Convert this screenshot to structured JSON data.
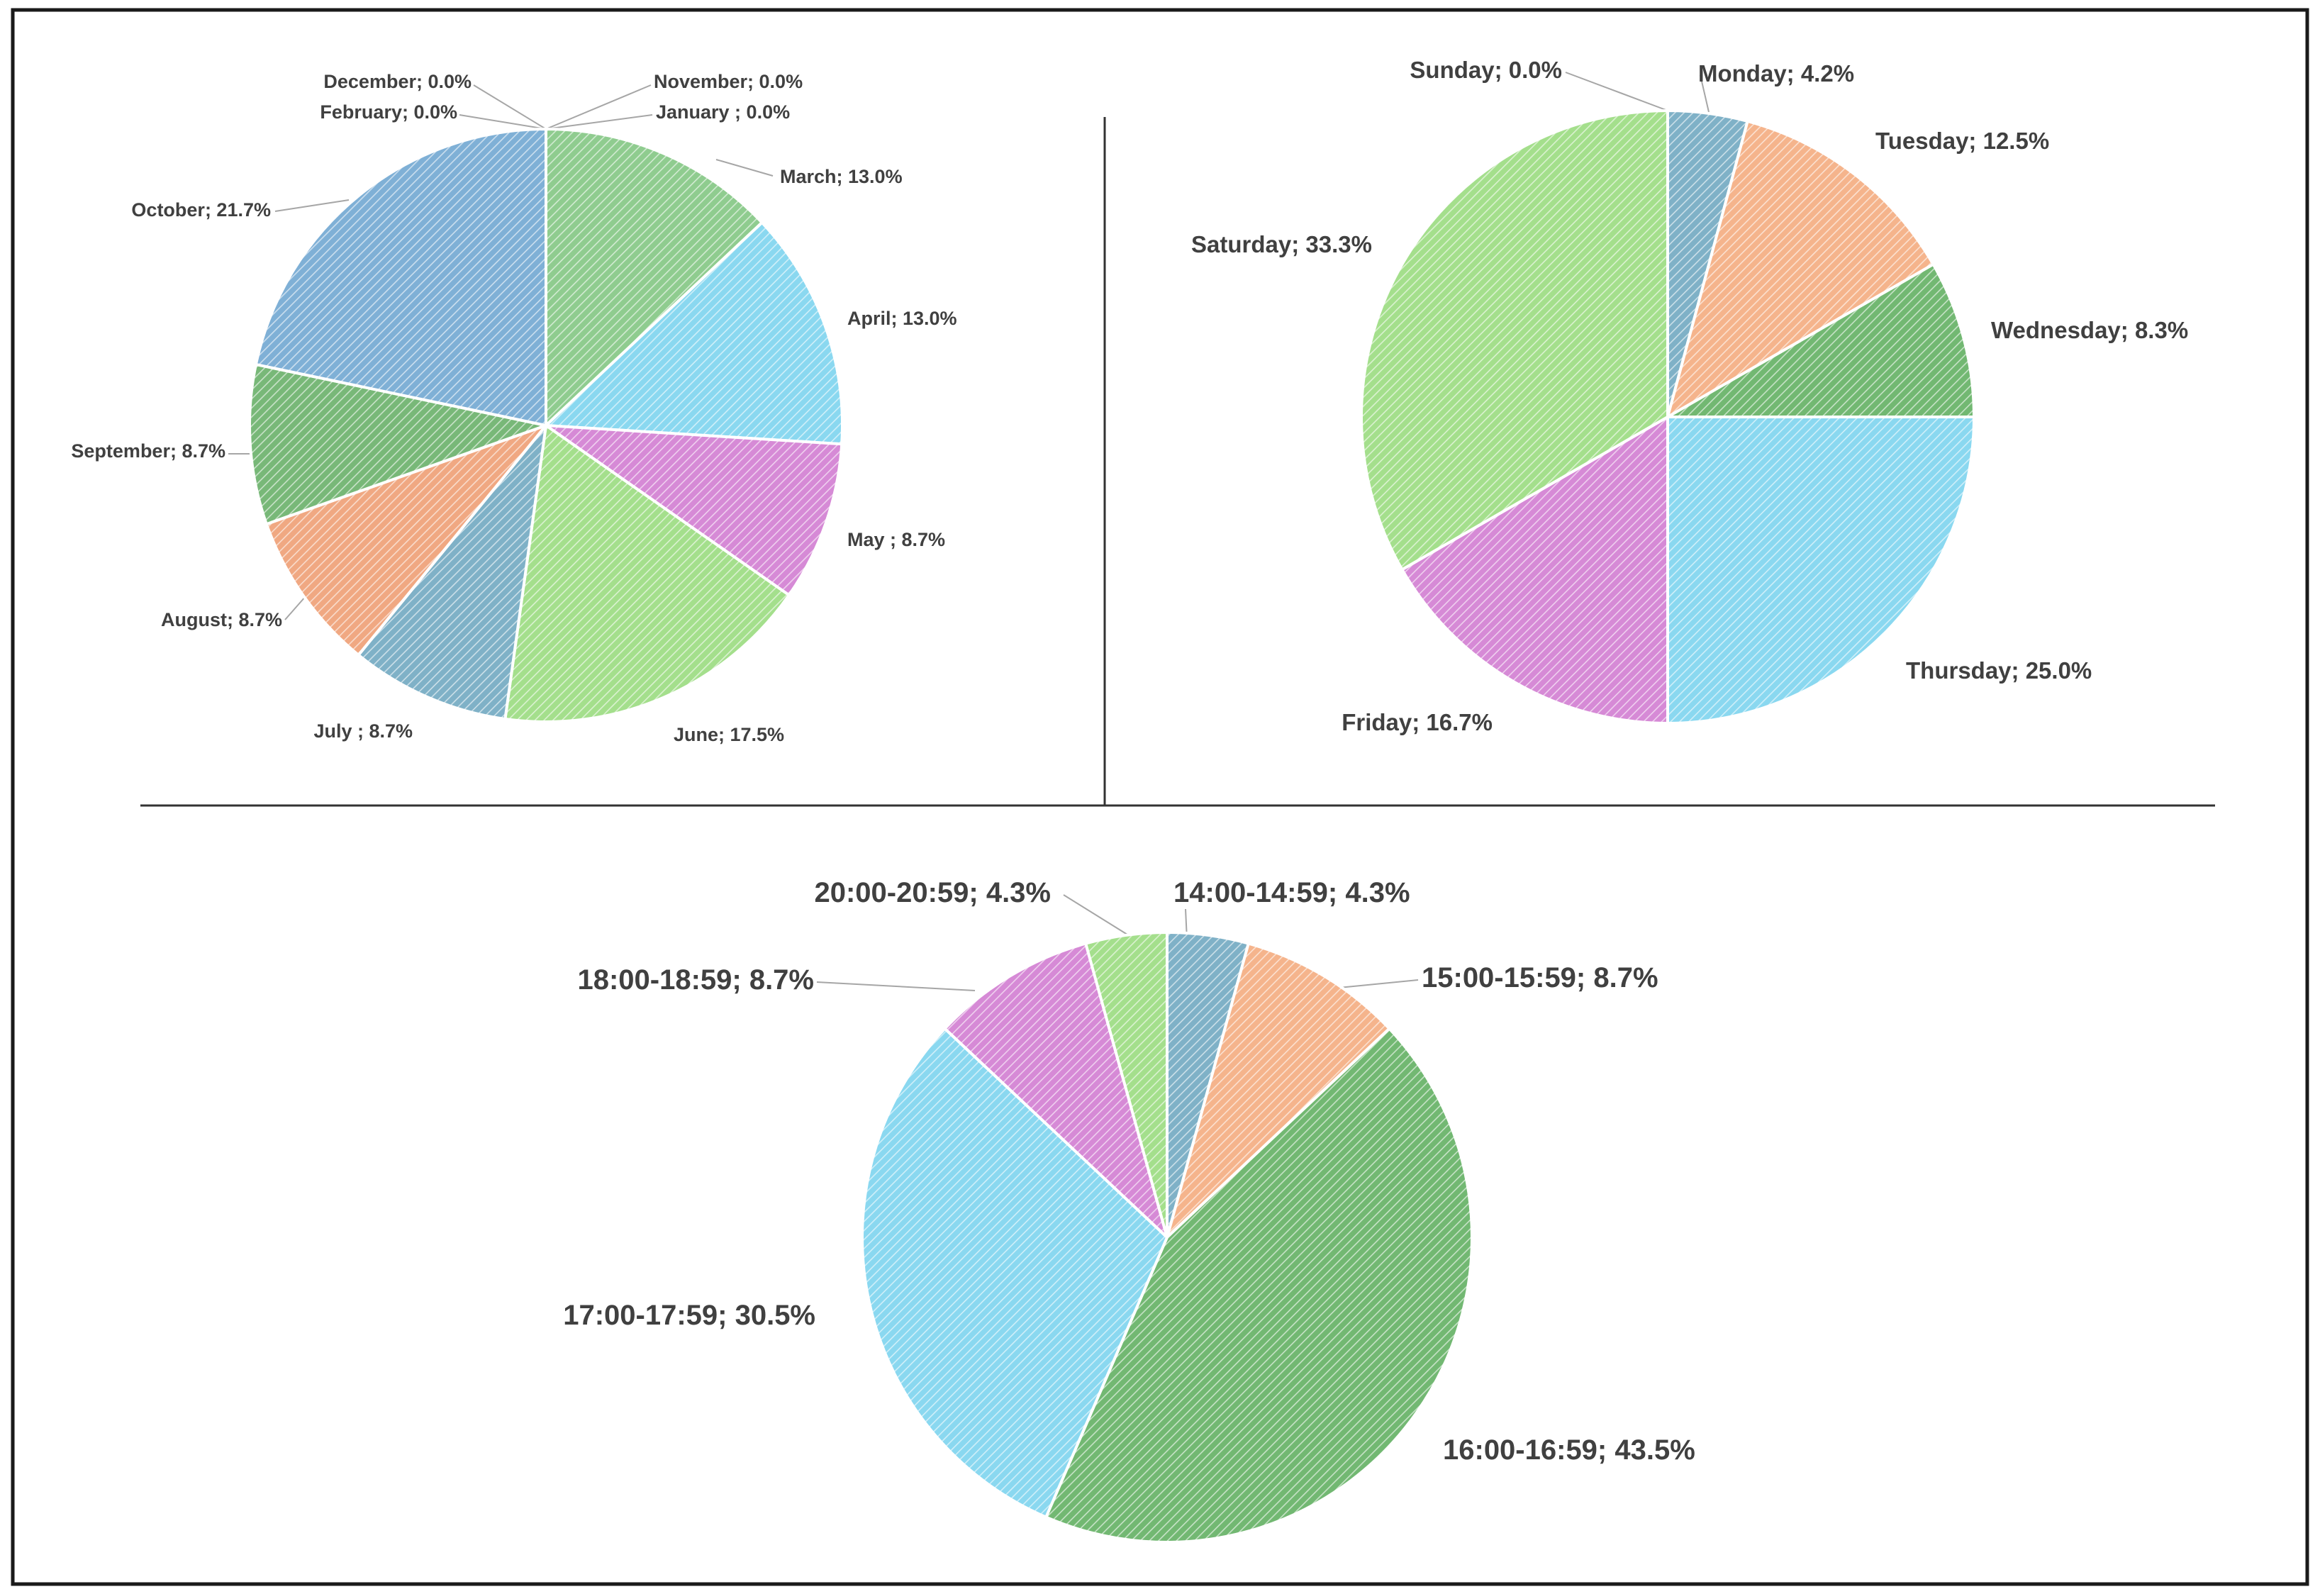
{
  "chart_data": [
    {
      "type": "pie",
      "title": "",
      "categories": [
        "March",
        "April",
        "May ",
        "June",
        "July ",
        "August",
        "September",
        "October",
        "December",
        "February",
        "January ",
        "November"
      ],
      "values": [
        13.0,
        13.0,
        8.7,
        17.5,
        8.7,
        8.7,
        8.7,
        21.7,
        0.0,
        0.0,
        0.0,
        0.0
      ],
      "labels": [
        "March; 13.0%",
        "April; 13.0%",
        "May ; 8.7%",
        "June; 17.5%",
        "July ; 8.7%",
        "August; 8.7%",
        "September; 8.7%",
        "October; 21.7%",
        "December; 0.0%",
        "February; 0.0%",
        "January ; 0.0%",
        "November; 0.0%"
      ],
      "colors": [
        "#8fcc8f",
        "#8ad8f0",
        "#d68ad6",
        "#a4df8c",
        "#7fb1c7",
        "#f0a882",
        "#78b878",
        "#7fb0d6",
        "#8fcc8f",
        "#8ad8f0",
        "#d68ad6",
        "#a4df8c"
      ],
      "start_angle_deg": 0,
      "direction": "clockwise"
    },
    {
      "type": "pie",
      "title": "",
      "categories": [
        "Monday",
        "Tuesday",
        "Wednesday",
        "Thursday",
        "Friday",
        "Saturday",
        "Sunday"
      ],
      "values": [
        4.2,
        12.5,
        8.3,
        25.0,
        16.7,
        33.3,
        0.0
      ],
      "labels": [
        "Monday; 4.2%",
        "Tuesday; 12.5%",
        "Wednesday; 8.3%",
        "Thursday; 25.0%",
        "Friday; 16.7%",
        "Saturday; 33.3%",
        "Sunday; 0.0%"
      ],
      "colors": [
        "#7fb1c7",
        "#f5b48c",
        "#72b872",
        "#8ad8f0",
        "#d68ad6",
        "#a4df8c",
        "#7fb0d6"
      ],
      "start_angle_deg": 0,
      "direction": "clockwise"
    },
    {
      "type": "pie",
      "title": "",
      "categories": [
        "14:00-14:59",
        "15:00-15:59",
        "16:00-16:59",
        "17:00-17:59",
        "18:00-18:59",
        "20:00-20:59"
      ],
      "values": [
        4.3,
        8.7,
        43.5,
        30.5,
        8.7,
        4.3
      ],
      "labels": [
        "14:00-14:59; 4.3%",
        "15:00-15:59; 8.7%",
        "16:00-16:59; 43.5%",
        "17:00-17:59; 30.5%",
        "18:00-18:59; 8.7%",
        "20:00-20:59; 4.3%"
      ],
      "colors": [
        "#7fb1c7",
        "#f5b48c",
        "#72b872",
        "#8ad8f0",
        "#d68ad6",
        "#a4df8c"
      ],
      "start_angle_deg": 0,
      "direction": "clockwise"
    }
  ]
}
